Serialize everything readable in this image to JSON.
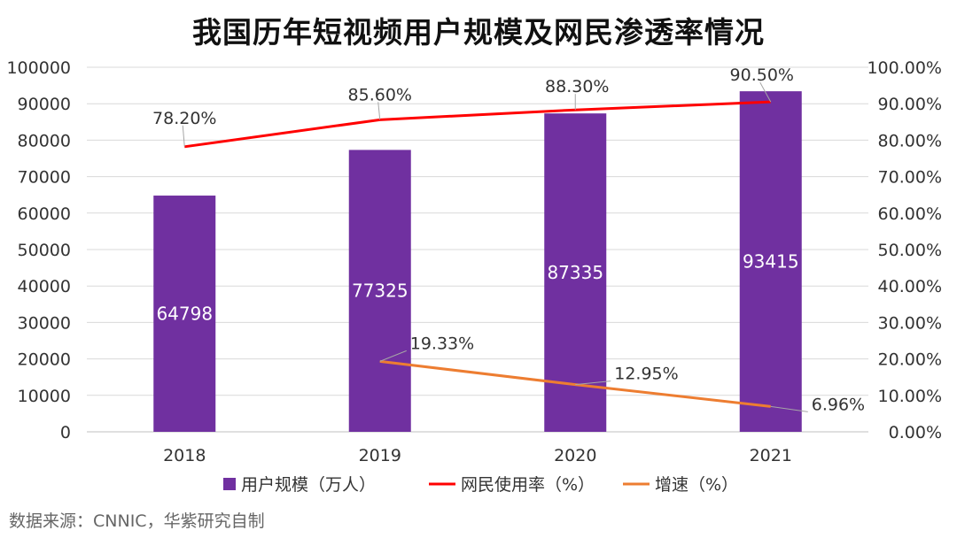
{
  "chart_data": {
    "type": "bar",
    "title": "我国历年短视频用户规模及网民渗透率情况",
    "categories": [
      "2018",
      "2019",
      "2020",
      "2021"
    ],
    "ylim_left": [
      0,
      100000
    ],
    "ylim_right": [
      0,
      100
    ],
    "left_ticks": [
      "0",
      "10000",
      "20000",
      "30000",
      "40000",
      "50000",
      "60000",
      "70000",
      "80000",
      "90000",
      "100000"
    ],
    "right_ticks": [
      "0.00%",
      "10.00%",
      "20.00%",
      "30.00%",
      "40.00%",
      "50.00%",
      "60.00%",
      "70.00%",
      "80.00%",
      "90.00%",
      "100.00%"
    ],
    "grid": true,
    "legend_position": "bottom",
    "series": [
      {
        "name": "用户规模（万人）",
        "type": "bar",
        "axis": "left",
        "color": "#7030A0",
        "values": [
          64798,
          77325,
          87335,
          93415
        ],
        "labels": [
          "64798",
          "77325",
          "87335",
          "93415"
        ]
      },
      {
        "name": "网民使用率（%）",
        "type": "line",
        "axis": "right",
        "color": "#FF0000",
        "values": [
          78.2,
          85.6,
          88.3,
          90.5
        ],
        "labels": [
          "78.20%",
          "85.60%",
          "88.30%",
          "90.50%"
        ]
      },
      {
        "name": "增速（%）",
        "type": "line",
        "axis": "right",
        "color": "#ED7D31",
        "values": [
          null,
          19.33,
          12.95,
          6.96
        ],
        "labels": [
          "",
          "19.33%",
          "12.95%",
          "6.96%"
        ]
      }
    ]
  },
  "source": "数据来源：CNNIC，华紫研究自制"
}
